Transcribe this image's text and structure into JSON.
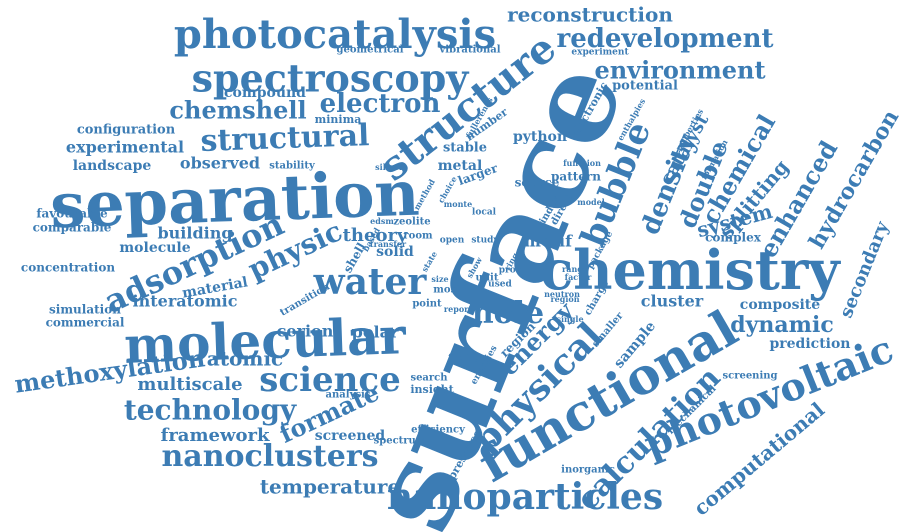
{
  "word_cloud": {
    "color": "#3c7cb4",
    "words": [
      {
        "text": "surface"
      },
      {
        "text": "separation"
      },
      {
        "text": "chemistry"
      },
      {
        "text": "molecular"
      },
      {
        "text": "functional"
      },
      {
        "text": "photocatalysis"
      },
      {
        "text": "spectroscopy"
      },
      {
        "text": "nanoparticles"
      },
      {
        "text": "photovoltaic"
      },
      {
        "text": "structure"
      },
      {
        "text": "physical"
      },
      {
        "text": "adsorption"
      },
      {
        "text": "water"
      },
      {
        "text": "science"
      },
      {
        "text": "calculation"
      },
      {
        "text": "nanoclusters"
      },
      {
        "text": "structural"
      },
      {
        "text": "technology"
      },
      {
        "text": "bubble"
      },
      {
        "text": "redevelopment"
      },
      {
        "text": "environment"
      },
      {
        "text": "electron"
      },
      {
        "text": "chemshell"
      },
      {
        "text": "methoxylation"
      },
      {
        "text": "physic"
      },
      {
        "text": "hole"
      },
      {
        "text": "energy"
      },
      {
        "text": "density"
      },
      {
        "text": "double"
      },
      {
        "text": "chemical"
      },
      {
        "text": "enhanced"
      },
      {
        "text": "hydrocarbon"
      },
      {
        "text": "dynamic"
      },
      {
        "text": "computational"
      },
      {
        "text": "formate"
      },
      {
        "text": "temperature"
      },
      {
        "text": "reconstruction"
      },
      {
        "text": "multiscale"
      },
      {
        "text": "atomic"
      },
      {
        "text": "framework"
      },
      {
        "text": "secondary"
      },
      {
        "text": "system"
      },
      {
        "text": "splitting"
      },
      {
        "text": "catalyst"
      },
      {
        "text": "theory"
      },
      {
        "text": "experimental"
      },
      {
        "text": "building"
      },
      {
        "text": "observed"
      },
      {
        "text": "landscape"
      },
      {
        "text": "metal"
      },
      {
        "text": "cluster"
      },
      {
        "text": "composite"
      },
      {
        "text": "prediction"
      },
      {
        "text": "polar"
      },
      {
        "text": "interatomic"
      },
      {
        "text": "material"
      },
      {
        "text": "cerion"
      },
      {
        "text": "compound"
      },
      {
        "text": "configuration"
      },
      {
        "text": "potential"
      },
      {
        "text": "sample"
      },
      {
        "text": "python"
      },
      {
        "text": "stable"
      },
      {
        "text": "motif"
      },
      {
        "text": "screened"
      },
      {
        "text": "molecule"
      },
      {
        "text": "concentration"
      },
      {
        "text": "favourable"
      },
      {
        "text": "comparable"
      },
      {
        "text": "simulation"
      },
      {
        "text": "commercial"
      },
      {
        "text": "minima"
      },
      {
        "text": "geometrical"
      },
      {
        "text": "vibrational"
      },
      {
        "text": "experiment"
      },
      {
        "text": "stability"
      },
      {
        "text": "number"
      },
      {
        "text": "larger"
      },
      {
        "text": "electronic"
      },
      {
        "text": "solid"
      },
      {
        "text": "shell"
      },
      {
        "text": "zeolite"
      },
      {
        "text": "source"
      },
      {
        "text": "pattern"
      },
      {
        "text": "region"
      },
      {
        "text": "complex"
      },
      {
        "text": "screening"
      },
      {
        "text": "mechanical"
      },
      {
        "text": "inorganic"
      },
      {
        "text": "insight"
      },
      {
        "text": "efficiency"
      },
      {
        "text": "search"
      },
      {
        "text": "presence"
      },
      {
        "text": "analysis"
      },
      {
        "text": "spectrum"
      },
      {
        "text": "point"
      },
      {
        "text": "transition"
      },
      {
        "text": "fullerenes"
      },
      {
        "text": "enthalpies"
      },
      {
        "text": "properties"
      },
      {
        "text": "formation"
      },
      {
        "text": "function"
      },
      {
        "text": "index"
      },
      {
        "text": "direct"
      },
      {
        "text": "room"
      },
      {
        "text": "open"
      },
      {
        "text": "study"
      },
      {
        "text": "used"
      },
      {
        "text": "local"
      },
      {
        "text": "proc"
      },
      {
        "text": "silicon"
      },
      {
        "text": "method"
      },
      {
        "text": "choice"
      },
      {
        "text": "model"
      },
      {
        "text": "package"
      },
      {
        "text": "neutron"
      },
      {
        "text": "charge"
      },
      {
        "text": "smaller"
      },
      {
        "text": "energies"
      },
      {
        "text": "finding"
      },
      {
        "text": "most"
      },
      {
        "text": "show"
      },
      {
        "text": "unit"
      },
      {
        "text": "report"
      },
      {
        "text": "single"
      },
      {
        "text": "range"
      },
      {
        "text": "factor"
      },
      {
        "text": "monte"
      },
      {
        "text": "region"
      },
      {
        "text": "edsm"
      },
      {
        "text": "based"
      },
      {
        "text": "transfer"
      },
      {
        "text": "size"
      },
      {
        "text": "ring"
      },
      {
        "text": "state"
      }
    ]
  }
}
